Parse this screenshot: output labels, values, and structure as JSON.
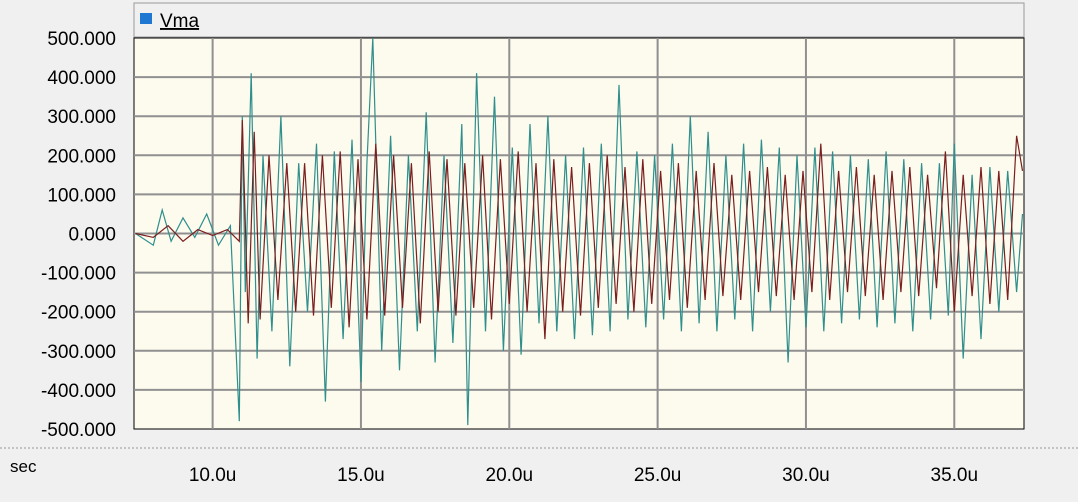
{
  "chart_data": {
    "type": "line",
    "title": "",
    "xlabel": "sec",
    "ylabel": "",
    "xlim": [
      7.35,
      37.35
    ],
    "ylim": [
      -500,
      500
    ],
    "x_ticks": [
      {
        "value": 10,
        "label": "10.0u"
      },
      {
        "value": 15,
        "label": "15.0u"
      },
      {
        "value": 20,
        "label": "20.0u"
      },
      {
        "value": 25,
        "label": "25.0u"
      },
      {
        "value": 30,
        "label": "30.0u"
      },
      {
        "value": 35,
        "label": "35.0u"
      }
    ],
    "y_ticks": [
      {
        "value": 500,
        "label": "500.000"
      },
      {
        "value": 400,
        "label": "400.000"
      },
      {
        "value": 300,
        "label": "300.000"
      },
      {
        "value": 200,
        "label": "200.000"
      },
      {
        "value": 100,
        "label": "100.000"
      },
      {
        "value": 0,
        "label": "0.000"
      },
      {
        "value": -100,
        "label": "-100.000"
      },
      {
        "value": -200,
        "label": "-200.000"
      },
      {
        "value": -300,
        "label": "-300.000"
      },
      {
        "value": -400,
        "label": "-400.000"
      },
      {
        "value": -500,
        "label": "-500.000"
      }
    ],
    "grid": true,
    "legend": {
      "position": "top-left",
      "entries": [
        {
          "name": "Vma",
          "color": "#1e78d2"
        }
      ]
    },
    "series": [
      {
        "name": "Vma",
        "color": "#2f8f8c",
        "x": [
          7.4,
          8.0,
          8.3,
          8.6,
          9.0,
          9.4,
          9.8,
          10.2,
          10.6,
          10.9,
          11.0,
          11.1,
          11.3,
          11.5,
          11.7,
          12.0,
          12.3,
          12.6,
          12.9,
          13.2,
          13.5,
          13.8,
          14.1,
          14.4,
          14.7,
          15.0,
          15.2,
          15.4,
          15.7,
          16.0,
          16.3,
          16.6,
          16.9,
          17.2,
          17.5,
          17.8,
          18.1,
          18.4,
          18.6,
          18.9,
          19.2,
          19.5,
          19.8,
          20.1,
          20.4,
          20.7,
          21.0,
          21.3,
          21.6,
          21.9,
          22.2,
          22.5,
          22.8,
          23.1,
          23.4,
          23.7,
          24.0,
          24.3,
          24.6,
          24.9,
          25.2,
          25.5,
          25.8,
          26.1,
          26.4,
          26.7,
          27.0,
          27.3,
          27.6,
          27.9,
          28.2,
          28.5,
          28.8,
          29.1,
          29.4,
          29.7,
          30.0,
          30.3,
          30.6,
          30.9,
          31.2,
          31.5,
          31.8,
          32.1,
          32.4,
          32.7,
          33.0,
          33.3,
          33.6,
          33.9,
          34.2,
          34.5,
          34.8,
          35.0,
          35.3,
          35.6,
          35.9,
          36.2,
          36.5,
          36.8,
          37.1,
          37.3
        ],
        "y": [
          0,
          -30,
          60,
          -20,
          40,
          -10,
          50,
          -30,
          20,
          -480,
          300,
          -150,
          410,
          -320,
          200,
          -250,
          300,
          -340,
          180,
          -200,
          230,
          -430,
          210,
          -270,
          240,
          -380,
          180,
          500,
          -300,
          250,
          -350,
          200,
          -250,
          310,
          -330,
          200,
          -280,
          280,
          -490,
          410,
          -250,
          350,
          -300,
          220,
          -310,
          280,
          -230,
          300,
          -250,
          200,
          -270,
          220,
          -260,
          230,
          -250,
          380,
          -220,
          210,
          -240,
          200,
          -220,
          230,
          -250,
          300,
          -230,
          260,
          -250,
          200,
          -220,
          230,
          -250,
          240,
          -200,
          220,
          -330,
          200,
          -240,
          220,
          -250,
          210,
          -230,
          200,
          -220,
          190,
          -240,
          210,
          -230,
          190,
          -250,
          180,
          -220,
          180,
          -210,
          230,
          -320,
          150,
          -270,
          170,
          -200,
          160,
          -150,
          50
        ]
      },
      {
        "name": "",
        "color": "#7a1e1e",
        "x": [
          7.4,
          8.0,
          8.5,
          9.0,
          9.5,
          10.0,
          10.5,
          10.9,
          11.0,
          11.2,
          11.4,
          11.6,
          11.9,
          12.2,
          12.5,
          12.8,
          13.1,
          13.4,
          13.7,
          14.0,
          14.3,
          14.6,
          14.9,
          15.2,
          15.5,
          15.8,
          16.1,
          16.4,
          16.7,
          17.0,
          17.3,
          17.6,
          17.9,
          18.2,
          18.5,
          18.8,
          19.1,
          19.4,
          19.7,
          20.0,
          20.3,
          20.6,
          20.9,
          21.2,
          21.5,
          21.8,
          22.1,
          22.4,
          22.7,
          23.0,
          23.3,
          23.6,
          23.9,
          24.2,
          24.5,
          24.8,
          25.1,
          25.4,
          25.7,
          26.0,
          26.3,
          26.6,
          26.9,
          27.2,
          27.5,
          27.8,
          28.1,
          28.4,
          28.7,
          29.0,
          29.3,
          29.6,
          29.9,
          30.2,
          30.5,
          30.8,
          31.1,
          31.4,
          31.7,
          32.0,
          32.3,
          32.6,
          32.9,
          33.2,
          33.5,
          33.8,
          34.1,
          34.4,
          34.7,
          35.0,
          35.3,
          35.6,
          35.9,
          36.2,
          36.5,
          36.8,
          37.1,
          37.3
        ],
        "y": [
          0,
          -10,
          20,
          -20,
          10,
          -5,
          10,
          -20,
          290,
          -230,
          260,
          -220,
          200,
          -170,
          180,
          -200,
          180,
          -210,
          200,
          -190,
          210,
          -240,
          190,
          -220,
          230,
          -210,
          200,
          -190,
          180,
          -230,
          210,
          -200,
          190,
          -210,
          180,
          -190,
          200,
          -220,
          190,
          -180,
          210,
          -200,
          180,
          -270,
          190,
          -200,
          170,
          -210,
          180,
          -190,
          200,
          -180,
          170,
          -200,
          190,
          -180,
          160,
          -170,
          180,
          -190,
          160,
          -170,
          180,
          -160,
          150,
          -170,
          160,
          -150,
          170,
          -160,
          150,
          -170,
          160,
          -150,
          230,
          -170,
          160,
          -150,
          170,
          -160,
          150,
          -170,
          160,
          -150,
          170,
          -160,
          150,
          -140,
          210,
          -200,
          150,
          -160,
          170,
          -180,
          160,
          -170,
          250,
          160
        ]
      }
    ]
  }
}
